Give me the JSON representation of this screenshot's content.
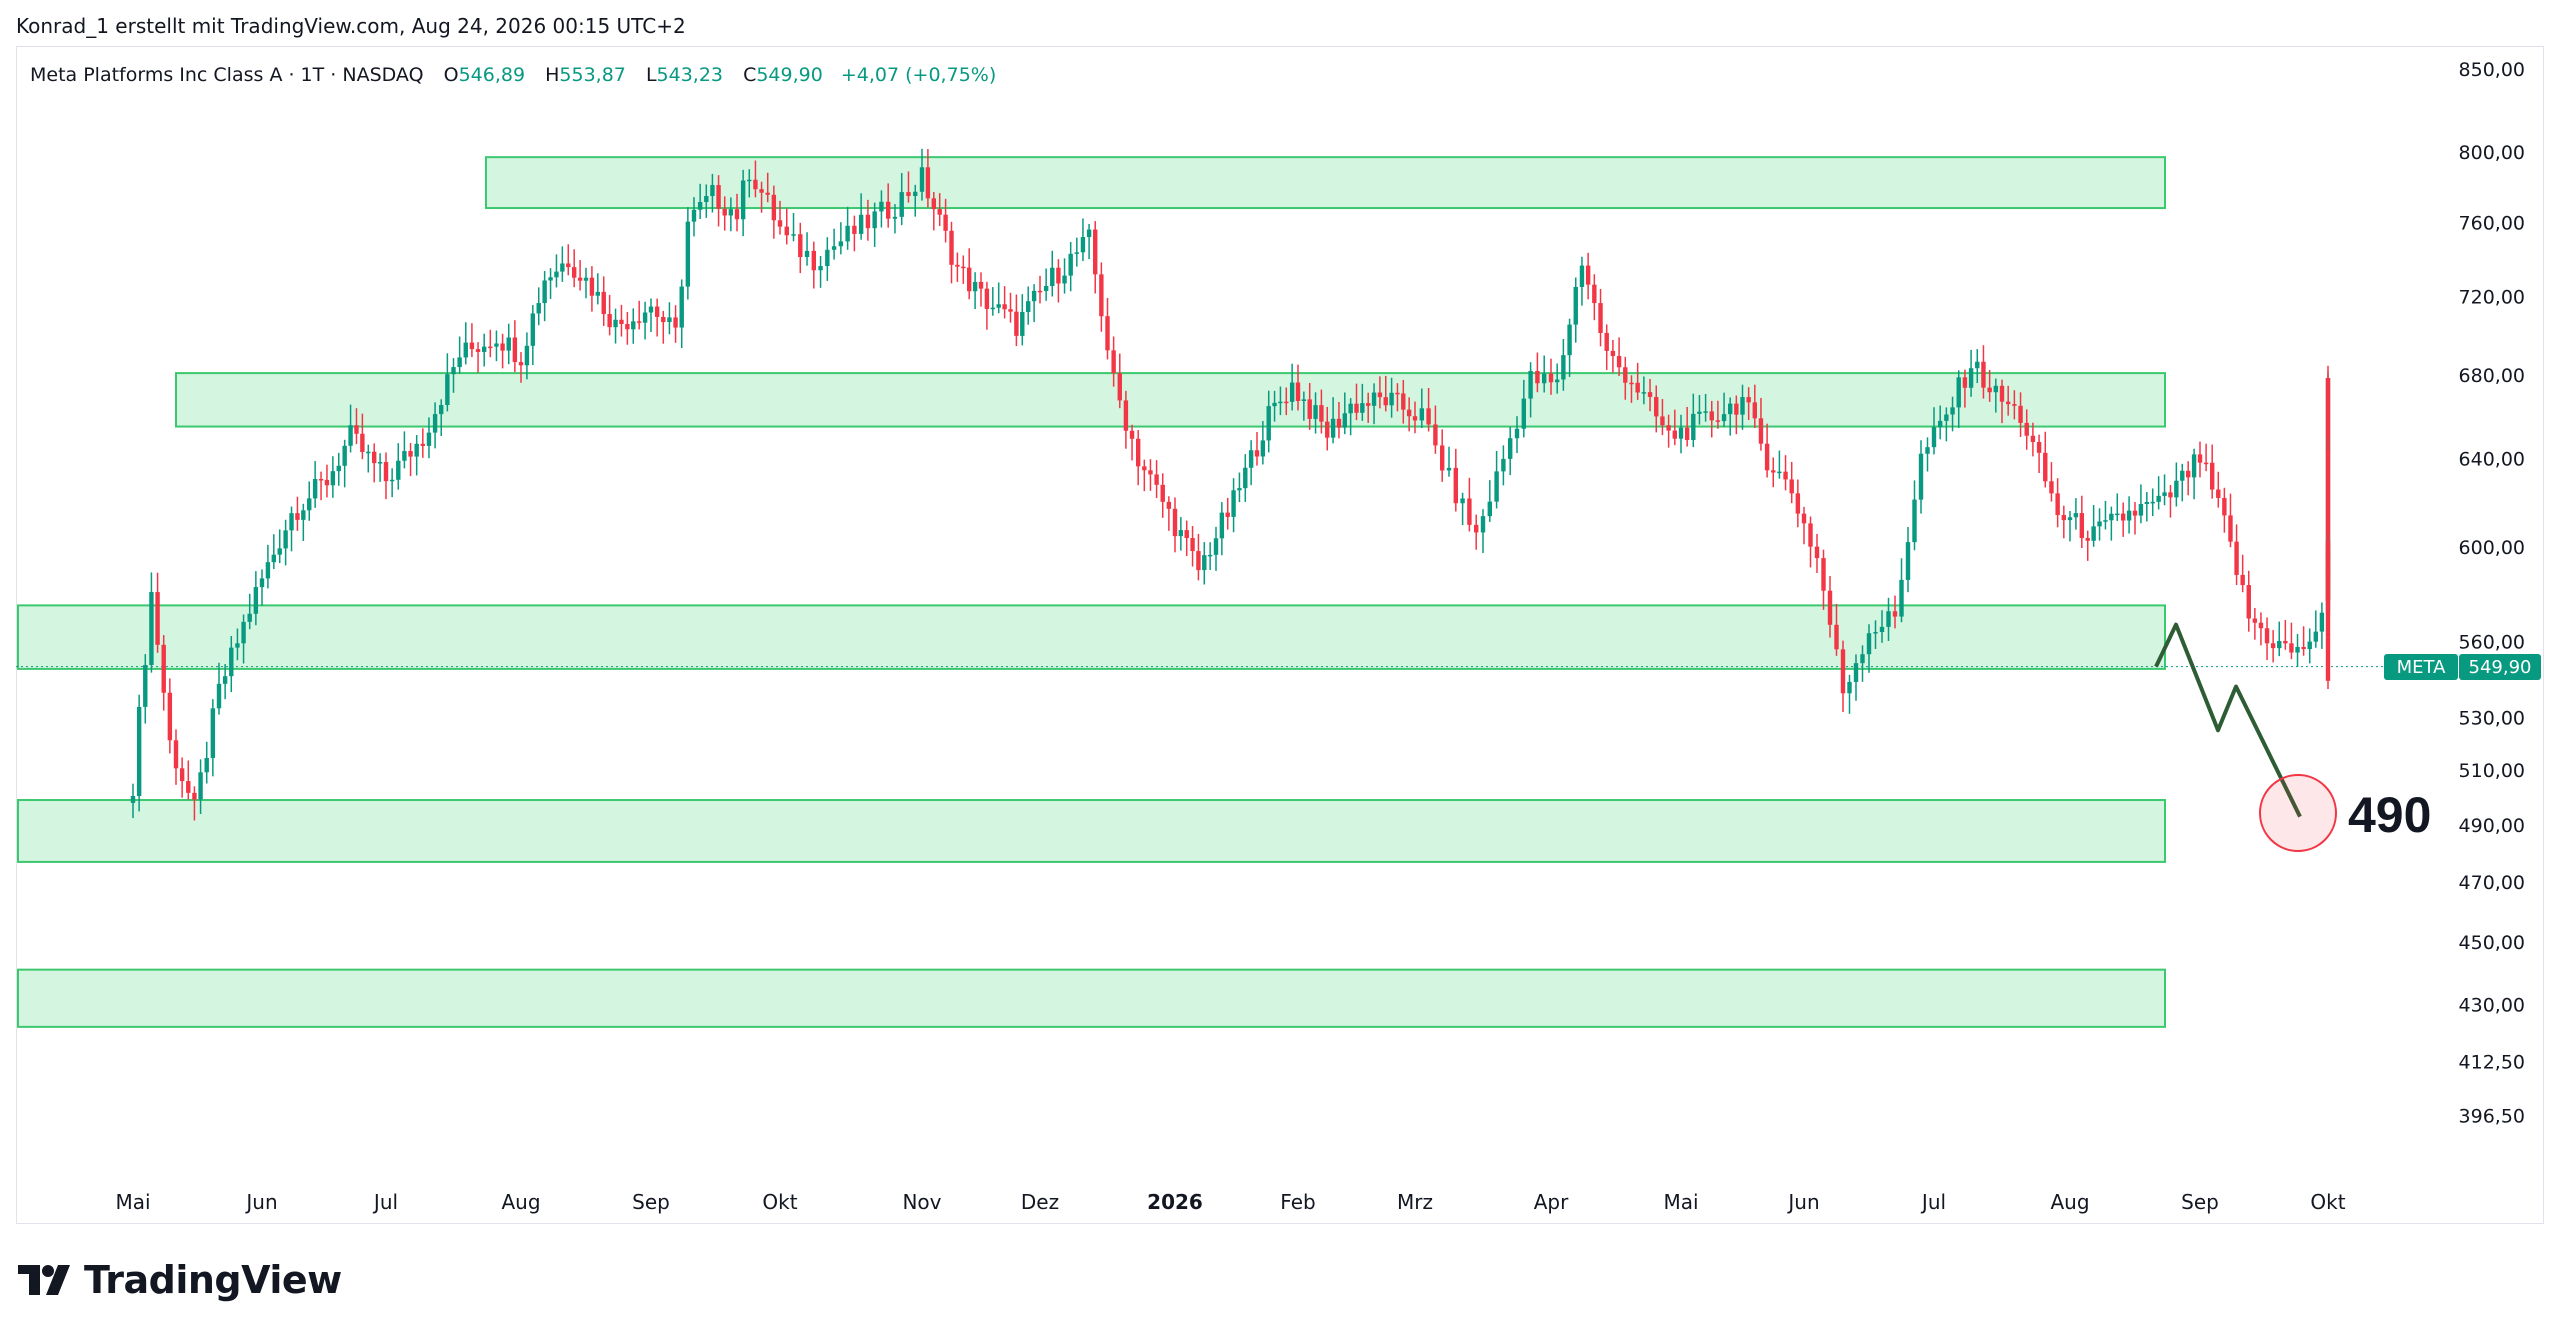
{
  "header": {
    "credit": "Konrad_1 erstellt mit TradingView.com, Aug 24, 2026 00:15 UTC+2"
  },
  "legend": {
    "symbol": "Meta Platforms Inc Class A · 1T · NASDAQ",
    "open_label": "O",
    "open_value": "546,89",
    "high_label": "H",
    "high_value": "553,87",
    "low_label": "L",
    "low_value": "543,23",
    "close_label": "C",
    "close_value": "549,90",
    "change": "+4,07 (+0,75%)"
  },
  "price_tag": {
    "ticker": "META",
    "value": "549,90"
  },
  "annotation": {
    "target_text": "490"
  },
  "branding": {
    "name": "TradingView"
  },
  "colors": {
    "up": "#089981",
    "down": "#f23645",
    "zone_fill": "#d4f5e0",
    "zone_stroke": "#3cc86e",
    "projection": "#2e5d35",
    "target_circle": "#f23645"
  },
  "chart_data": {
    "type": "candlestick",
    "x_axis_labels": [
      "Mai",
      "Jun",
      "Jul",
      "Aug",
      "Sep",
      "Okt",
      "Nov",
      "Dez",
      "2026",
      "Feb",
      "Mrz",
      "Apr",
      "Mai",
      "Jun",
      "Jul",
      "Aug",
      "Sep",
      "Okt"
    ],
    "y_axis_ticks": [
      "850,00",
      "800,00",
      "760,00",
      "720,00",
      "680,00",
      "640,00",
      "600,00",
      "560,00",
      "530,00",
      "510,00",
      "490,00",
      "470,00",
      "450,00",
      "430,00",
      "412,50",
      "396,50"
    ],
    "y_scale": "log",
    "last_price": 549.9,
    "zones": [
      {
        "top": 797,
        "bottom": 768,
        "from_month": "Aug",
        "to_month": "Sep (2026)"
      },
      {
        "top": 681,
        "bottom": 655,
        "from_month": "Mai",
        "to_month": "Sep (2026)"
      },
      {
        "top": 575,
        "bottom": 549,
        "from_month": "Apr",
        "to_month": "Sep (2026)"
      },
      {
        "top": 499,
        "bottom": 477,
        "from_month": "Apr",
        "to_month": "Sep (2026)"
      },
      {
        "top": 441,
        "bottom": 423,
        "from_month": "Apr",
        "to_month": "Sep (2026)"
      }
    ],
    "projection_path": [
      549.9,
      567,
      525,
      542,
      493
    ],
    "target": 490,
    "waypoints": [
      [
        0,
        505
      ],
      [
        3,
        580
      ],
      [
        6,
        520
      ],
      [
        10,
        495
      ],
      [
        14,
        540
      ],
      [
        20,
        580
      ],
      [
        26,
        615
      ],
      [
        32,
        630
      ],
      [
        36,
        650
      ],
      [
        42,
        630
      ],
      [
        48,
        650
      ],
      [
        54,
        690
      ],
      [
        60,
        700
      ],
      [
        64,
        690
      ],
      [
        68,
        730
      ],
      [
        72,
        740
      ],
      [
        76,
        725
      ],
      [
        80,
        705
      ],
      [
        86,
        715
      ],
      [
        90,
        700
      ],
      [
        92,
        760
      ],
      [
        96,
        775
      ],
      [
        100,
        765
      ],
      [
        102,
        790
      ],
      [
        108,
        750
      ],
      [
        112,
        740
      ],
      [
        118,
        755
      ],
      [
        124,
        770
      ],
      [
        128,
        785
      ],
      [
        134,
        735
      ],
      [
        138,
        720
      ],
      [
        144,
        705
      ],
      [
        150,
        730
      ],
      [
        156,
        750
      ],
      [
        160,
        676
      ],
      [
        164,
        640
      ],
      [
        168,
        620
      ],
      [
        174,
        590
      ],
      [
        180,
        620
      ],
      [
        186,
        660
      ],
      [
        190,
        675
      ],
      [
        196,
        652
      ],
      [
        200,
        665
      ],
      [
        206,
        668
      ],
      [
        212,
        660
      ],
      [
        216,
        630
      ],
      [
        220,
        605
      ],
      [
        224,
        640
      ],
      [
        228,
        678
      ],
      [
        232,
        675
      ],
      [
        236,
        740
      ],
      [
        240,
        690
      ],
      [
        244,
        678
      ],
      [
        250,
        650
      ],
      [
        256,
        658
      ],
      [
        262,
        668
      ],
      [
        266,
        640
      ],
      [
        270,
        625
      ],
      [
        274,
        595
      ],
      [
        278,
        540
      ],
      [
        282,
        565
      ],
      [
        286,
        570
      ],
      [
        290,
        640
      ],
      [
        294,
        660
      ],
      [
        298,
        686
      ],
      [
        302,
        670
      ],
      [
        306,
        660
      ],
      [
        312,
        615
      ],
      [
        318,
        605
      ],
      [
        324,
        615
      ],
      [
        330,
        620
      ],
      [
        336,
        640
      ],
      [
        340,
        610
      ],
      [
        344,
        570
      ],
      [
        348,
        560
      ],
      [
        352,
        555
      ],
      [
        356,
        568
      ],
      [
        360,
        600
      ],
      [
        362,
        650
      ],
      [
        364,
        675
      ],
      [
        368,
        640
      ],
      [
        372,
        610
      ],
      [
        374,
        590
      ],
      [
        376,
        578
      ],
      [
        378,
        592
      ],
      [
        380,
        598
      ],
      [
        382,
        580
      ],
      [
        384,
        548
      ]
    ]
  }
}
